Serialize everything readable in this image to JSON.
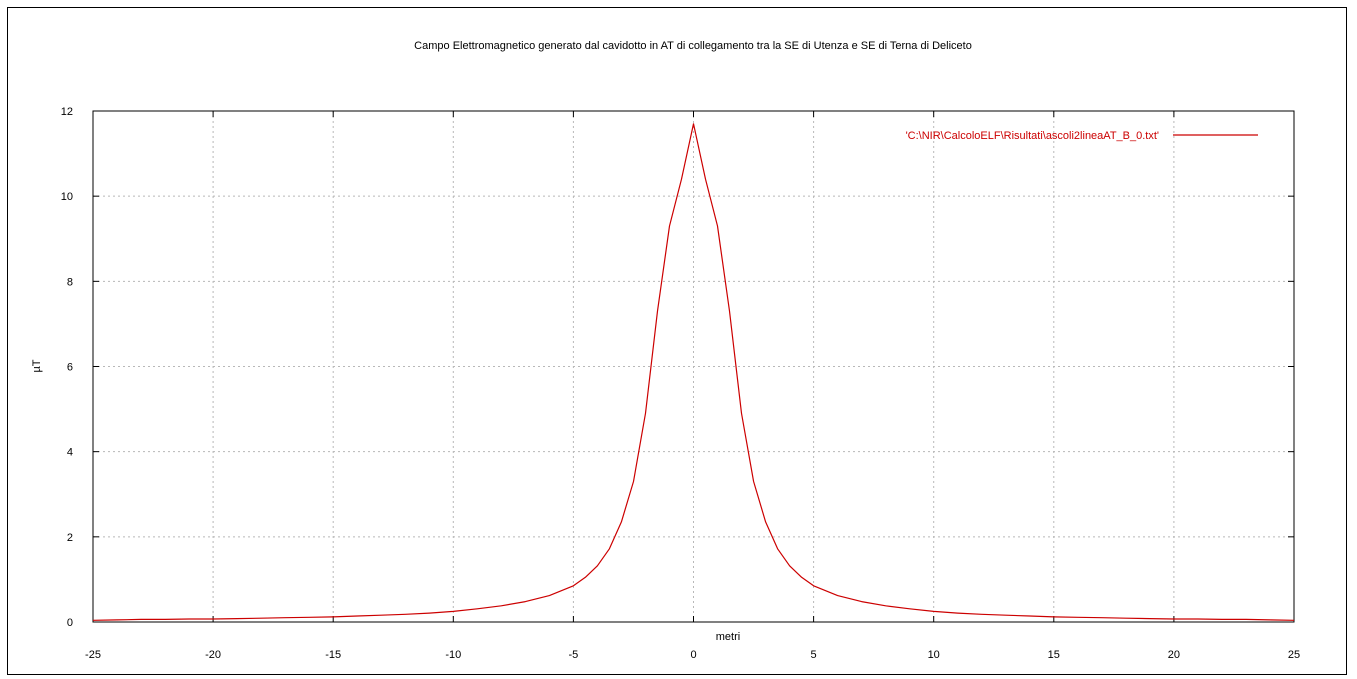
{
  "chart_data": {
    "type": "line",
    "title": "Campo Elettromagnetico generato dal cavidotto in AT di collegamento tra la SE di Utenza e SE di Terna di Deliceto",
    "xlabel": "metri",
    "ylabel": "µT",
    "xlim": [
      -25,
      25
    ],
    "ylim": [
      0,
      12
    ],
    "xticks": [
      -25,
      -20,
      -15,
      -10,
      -5,
      0,
      5,
      10,
      15,
      20,
      25
    ],
    "yticks": [
      0,
      2,
      4,
      6,
      8,
      10,
      12
    ],
    "grid": true,
    "legend_position": "top-right",
    "series": [
      {
        "name": "'C:\\NIR\\CalcoloELF\\Risultati\\ascoli2lineaAT_B_0.txt'",
        "color": "#cc0000",
        "x": [
          -25,
          -24,
          -23,
          -22,
          -21,
          -20,
          -19,
          -18,
          -17,
          -16,
          -15,
          -14,
          -13,
          -12,
          -11,
          -10,
          -9,
          -8,
          -7,
          -6,
          -5,
          -4.5,
          -4,
          -3.5,
          -3,
          -2.5,
          -2,
          -1.5,
          -1,
          -0.5,
          0,
          0.5,
          1,
          1.5,
          2,
          2.5,
          3,
          3.5,
          4,
          4.5,
          5,
          6,
          7,
          8,
          9,
          10,
          11,
          12,
          13,
          14,
          15,
          16,
          17,
          18,
          19,
          20,
          21,
          22,
          23,
          24,
          25
        ],
        "y": [
          0.04,
          0.05,
          0.06,
          0.06,
          0.07,
          0.07,
          0.08,
          0.09,
          0.1,
          0.11,
          0.12,
          0.14,
          0.16,
          0.18,
          0.21,
          0.25,
          0.31,
          0.38,
          0.48,
          0.62,
          0.85,
          1.05,
          1.32,
          1.72,
          2.35,
          3.3,
          4.9,
          7.3,
          9.3,
          10.4,
          11.7,
          10.4,
          9.3,
          7.3,
          4.9,
          3.3,
          2.35,
          1.72,
          1.32,
          1.05,
          0.85,
          0.62,
          0.48,
          0.38,
          0.31,
          0.25,
          0.21,
          0.18,
          0.16,
          0.14,
          0.12,
          0.11,
          0.1,
          0.09,
          0.08,
          0.07,
          0.07,
          0.06,
          0.06,
          0.05,
          0.04
        ]
      }
    ]
  }
}
